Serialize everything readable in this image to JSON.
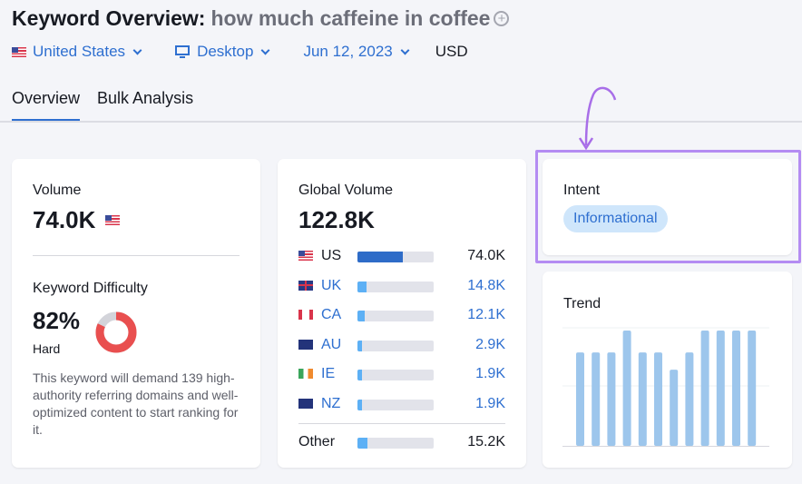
{
  "header": {
    "title": "Keyword Overview:",
    "keyword": "how much caffeine in coffee",
    "add_icon": "plus-circle-icon"
  },
  "filters": {
    "country": "United States",
    "device": "Desktop",
    "date": "Jun 12, 2023",
    "currency": "USD"
  },
  "tabs": [
    {
      "label": "Overview",
      "active": true
    },
    {
      "label": "Bulk Analysis",
      "active": false
    }
  ],
  "volume": {
    "label": "Volume",
    "value": "74.0K"
  },
  "difficulty": {
    "label": "Keyword Difficulty",
    "value": "82%",
    "percent": 82,
    "level": "Hard",
    "description": "This keyword will demand 139 high-authority referring domains and well-optimized content to start ranking for it.",
    "color": "#e94f4f"
  },
  "global": {
    "label": "Global Volume",
    "value": "122.8K",
    "rows": [
      {
        "code": "US",
        "value": "74.0K",
        "share": 0.6
      },
      {
        "code": "UK",
        "value": "14.8K",
        "share": 0.12
      },
      {
        "code": "CA",
        "value": "12.1K",
        "share": 0.1
      },
      {
        "code": "AU",
        "value": "2.9K",
        "share": 0.03
      },
      {
        "code": "IE",
        "value": "1.9K",
        "share": 0.03
      },
      {
        "code": "NZ",
        "value": "1.9K",
        "share": 0.03
      }
    ],
    "other": {
      "label": "Other",
      "value": "15.2K",
      "share": 0.13
    }
  },
  "intent": {
    "label": "Intent",
    "badge": "Informational",
    "highlight_color": "#b48cf2"
  },
  "trend": {
    "label": "Trend",
    "levels": [
      0.81,
      0.81,
      0.81,
      1,
      0.81,
      0.81,
      0.66,
      0.81,
      1,
      1,
      1,
      1
    ]
  }
}
